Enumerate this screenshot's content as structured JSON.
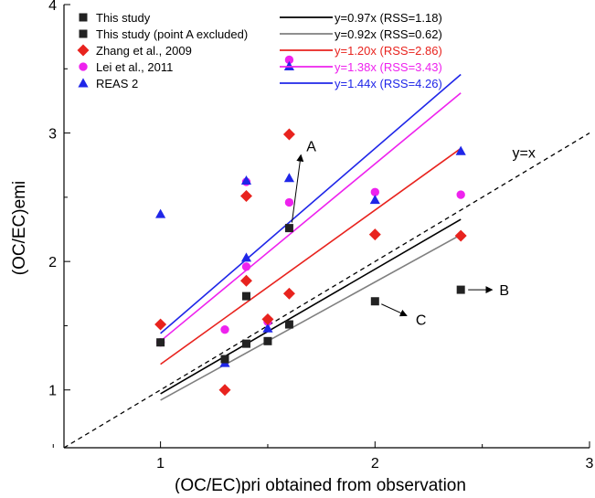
{
  "chart_data": {
    "type": "scatter",
    "title": "",
    "xlabel": "(OC/EC)pri obtained from observation",
    "ylabel": "(OC/EC)emi",
    "xlim": [
      0.55,
      3.0
    ],
    "ylim": [
      0.55,
      4.0
    ],
    "xticks": [
      1,
      2,
      3
    ],
    "xtick_labels": [
      "1",
      "2",
      "3"
    ],
    "yticks": [
      1,
      2,
      3,
      4
    ],
    "ytick_labels": [
      "1",
      "2",
      "3",
      "4"
    ],
    "grid": false,
    "legend_position": "top",
    "series": [
      {
        "name": "This study",
        "marker": "square",
        "color": "#222222",
        "points": [
          [
            1.0,
            1.37
          ],
          [
            1.3,
            1.24
          ],
          [
            1.4,
            1.73
          ],
          [
            1.4,
            1.36
          ],
          [
            1.5,
            1.38
          ],
          [
            1.6,
            1.51
          ],
          [
            1.6,
            2.26
          ],
          [
            2.0,
            1.69
          ],
          [
            2.4,
            1.78
          ]
        ]
      },
      {
        "name": "This study (point A excluded)",
        "marker": "square",
        "color": "#222222",
        "points": []
      },
      {
        "name": "Zhang et al., 2009",
        "marker": "diamond",
        "color": "#e8231e",
        "points": [
          [
            1.0,
            1.51
          ],
          [
            1.3,
            1.0
          ],
          [
            1.4,
            1.85
          ],
          [
            1.4,
            2.51
          ],
          [
            1.5,
            1.55
          ],
          [
            1.6,
            1.75
          ],
          [
            1.6,
            2.99
          ],
          [
            2.0,
            2.21
          ],
          [
            2.4,
            2.2
          ]
        ]
      },
      {
        "name": "Lei et al., 2011",
        "marker": "circle",
        "color": "#ee22ee",
        "points": [
          [
            1.0,
            1.37
          ],
          [
            1.3,
            1.47
          ],
          [
            1.4,
            1.96
          ],
          [
            1.4,
            2.62
          ],
          [
            1.5,
            1.53
          ],
          [
            1.6,
            2.46
          ],
          [
            1.6,
            3.57
          ],
          [
            2.0,
            2.54
          ],
          [
            2.4,
            2.52
          ]
        ]
      },
      {
        "name": "REAS 2",
        "marker": "triangle",
        "color": "#1f26e8",
        "points": [
          [
            1.0,
            2.37
          ],
          [
            1.3,
            1.21
          ],
          [
            1.4,
            2.03
          ],
          [
            1.4,
            2.63
          ],
          [
            1.5,
            1.48
          ],
          [
            1.6,
            2.65
          ],
          [
            1.6,
            3.52
          ],
          [
            2.0,
            2.48
          ],
          [
            2.4,
            2.86
          ]
        ]
      }
    ],
    "fit_lines": [
      {
        "label": "y=0.97x (RSS=1.18)",
        "slope": 0.97,
        "color": "#000000",
        "x_range": [
          1.0,
          2.4
        ]
      },
      {
        "label": "y=0.92x (RSS=0.62)",
        "slope": 0.92,
        "color": "#7f7f7f",
        "x_range": [
          1.0,
          2.4
        ]
      },
      {
        "label": "y=1.20x (RSS=2.86)",
        "slope": 1.2,
        "color": "#e8231e",
        "x_range": [
          1.0,
          2.4
        ]
      },
      {
        "label": "y=1.38x (RSS=3.43)",
        "slope": 1.38,
        "color": "#ee22ee",
        "x_range": [
          1.0,
          2.4
        ]
      },
      {
        "label": "y=1.44x (RSS=4.26)",
        "slope": 1.44,
        "color": "#1f26e8",
        "x_range": [
          1.0,
          2.4
        ]
      }
    ],
    "reference_line": {
      "label": "y=x",
      "slope": 1.0,
      "style": "dashed",
      "color": "#000000"
    },
    "annotations": [
      {
        "text": "A",
        "point": [
          1.6,
          2.26
        ],
        "label_at": [
          1.68,
          2.9
        ]
      },
      {
        "text": "B",
        "point": [
          2.4,
          1.78
        ],
        "label_at": [
          2.58,
          1.78
        ]
      },
      {
        "text": "C",
        "point": [
          2.0,
          1.69
        ],
        "label_at": [
          2.19,
          1.55
        ]
      }
    ]
  }
}
